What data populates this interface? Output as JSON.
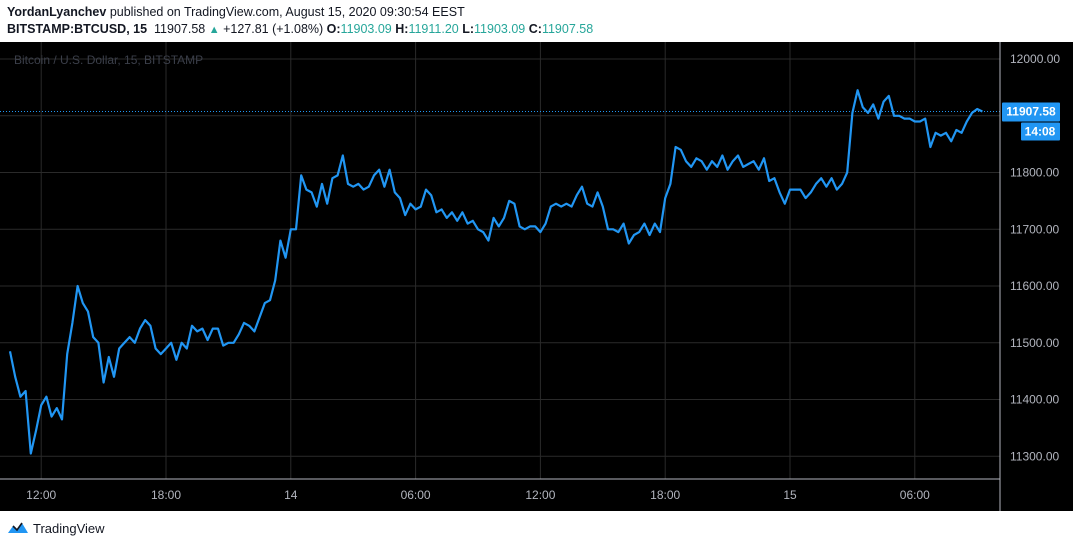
{
  "header": {
    "author": "YordanLyanchev",
    "published_text": "published on TradingView.com, August 15, 2020 09:30:54 EEST",
    "symbol": "BITSTAMP:BTCUSD, 15",
    "last": "11907.58",
    "change": "+127.81 (+1.08%)",
    "o_label": "O:",
    "o_value": "11903.09",
    "h_label": "H:",
    "h_value": "11911.20",
    "l_label": "L:",
    "l_value": "11903.09",
    "c_label": "C:",
    "c_value": "11907.58"
  },
  "watermark": "Bitcoin / U.S. Dollar, 15, BITSTAMP",
  "price_badge": {
    "price": "11907.58",
    "countdown": "14:08"
  },
  "footer": {
    "brand": "TradingView"
  },
  "colors": {
    "background": "#000000",
    "line": "#2196f3",
    "grid": "#2a2a2a",
    "axis_text": "#b2b5be",
    "up": "#26a69a",
    "badge": "#2196f3"
  },
  "icons": {
    "logo": "tradingview-cloud-icon",
    "change_arrow": "triangle-up-icon"
  },
  "chart_data": {
    "type": "line",
    "ylim": [
      11260,
      12030
    ],
    "y_ticks": [
      {
        "value": 11300,
        "label": "11300.00"
      },
      {
        "value": 11400,
        "label": "11400.00"
      },
      {
        "value": 11500,
        "label": "11500.00"
      },
      {
        "value": 11600,
        "label": "11600.00"
      },
      {
        "value": 11700,
        "label": "11700.00"
      },
      {
        "value": 11800,
        "label": "11800.00"
      },
      {
        "value": 11900,
        "label": "11900.00"
      },
      {
        "value": 12000,
        "label": "12000.00"
      }
    ],
    "x_ticks": [
      {
        "label": "12:00",
        "bar": 6
      },
      {
        "label": "18:00",
        "bar": 30
      },
      {
        "label": "14",
        "bar": 54
      },
      {
        "label": "06:00",
        "bar": 78
      },
      {
        "label": "12:00",
        "bar": 102
      },
      {
        "label": "18:00",
        "bar": 126
      },
      {
        "label": "15",
        "bar": 150
      },
      {
        "label": "06:00",
        "bar": 174
      }
    ],
    "current_price": 11907.58,
    "series": [
      {
        "values": [
          11485,
          11440,
          11405,
          11415,
          11305,
          11345,
          11390,
          11405,
          11370,
          11385,
          11365,
          11480,
          11535,
          11600,
          11570,
          11555,
          11510,
          11500,
          11430,
          11475,
          11440,
          11490,
          11500,
          11510,
          11500,
          11525,
          11540,
          11530,
          11490,
          11480,
          11490,
          11500,
          11470,
          11500,
          11490,
          11530,
          11520,
          11525,
          11505,
          11525,
          11525,
          11495,
          11500,
          11500,
          11515,
          11535,
          11530,
          11520,
          11545,
          11570,
          11575,
          11610,
          11680,
          11650,
          11700,
          11700,
          11795,
          11770,
          11765,
          11740,
          11780,
          11745,
          11790,
          11795,
          11830,
          11780,
          11775,
          11780,
          11770,
          11775,
          11795,
          11805,
          11775,
          11805,
          11765,
          11755,
          11725,
          11745,
          11735,
          11740,
          11770,
          11760,
          11730,
          11735,
          11720,
          11730,
          11715,
          11730,
          11710,
          11715,
          11700,
          11695,
          11680,
          11720,
          11705,
          11720,
          11750,
          11745,
          11705,
          11700,
          11705,
          11705,
          11695,
          11710,
          11740,
          11745,
          11740,
          11745,
          11740,
          11760,
          11775,
          11745,
          11740,
          11765,
          11740,
          11700,
          11700,
          11695,
          11710,
          11675,
          11690,
          11695,
          11710,
          11690,
          11710,
          11695,
          11755,
          11780,
          11845,
          11840,
          11820,
          11810,
          11825,
          11820,
          11805,
          11820,
          11810,
          11830,
          11805,
          11820,
          11830,
          11810,
          11815,
          11820,
          11805,
          11825,
          11785,
          11790,
          11765,
          11745,
          11770,
          11770,
          11770,
          11755,
          11765,
          11780,
          11790,
          11775,
          11790,
          11770,
          11780,
          11800,
          11905,
          11945,
          11915,
          11905,
          11920,
          11895,
          11925,
          11935,
          11900,
          11900,
          11895,
          11895,
          11890,
          11890,
          11895,
          11845,
          11870,
          11865,
          11870,
          11855,
          11875,
          11870,
          11890,
          11905,
          11912,
          11907.58
        ]
      }
    ]
  }
}
